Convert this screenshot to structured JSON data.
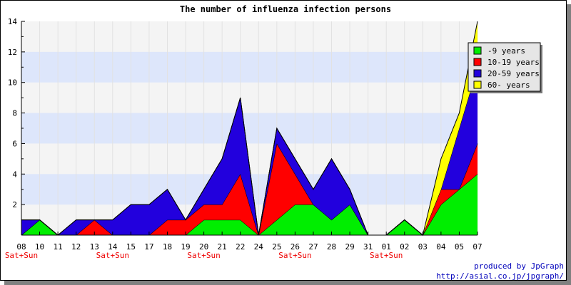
{
  "chart_data": {
    "type": "area",
    "stacked": true,
    "title": "The number of influenza infection persons",
    "categories": [
      "08",
      "10",
      "11",
      "12",
      "13",
      "14",
      "15",
      "17",
      "18",
      "19",
      "20",
      "21",
      "22",
      "24",
      "25",
      "26",
      "27",
      "28",
      "29",
      "31",
      "01",
      "02",
      "03",
      "04",
      "05",
      "07"
    ],
    "weekend_marker": "Sat+Sun",
    "weekend_marker_categories": [
      "08",
      "14",
      "20",
      "26",
      "01"
    ],
    "ylim": [
      0,
      14
    ],
    "yticks": [
      2,
      4,
      6,
      8,
      10,
      12,
      14
    ],
    "grid": "horizontal bands",
    "legend_position": "top-right",
    "series": [
      {
        "name": "-9 years",
        "color": "#00ee00",
        "values": [
          0,
          1,
          0,
          0,
          0,
          0,
          0,
          0,
          0,
          0,
          1,
          1,
          1,
          0,
          1,
          2,
          2,
          1,
          2,
          0,
          0,
          1,
          0,
          2,
          3,
          4
        ]
      },
      {
        "name": "10-19 years",
        "color": "#ff0000",
        "values": [
          0,
          0,
          0,
          0,
          1,
          0,
          0,
          0,
          1,
          1,
          1,
          1,
          3,
          0,
          5,
          2,
          0,
          0,
          0,
          0,
          0,
          0,
          0,
          1,
          0,
          2
        ]
      },
      {
        "name": "20-59 years",
        "color": "#2200dd",
        "values": [
          1,
          0,
          0,
          1,
          0,
          1,
          2,
          2,
          2,
          0,
          1,
          3,
          5,
          0,
          1,
          1,
          1,
          4,
          1,
          0,
          0,
          0,
          0,
          0,
          4,
          5
        ]
      },
      {
        "name": "60- years",
        "color": "#ffff00",
        "values": [
          0,
          0,
          0,
          0,
          0,
          0,
          0,
          0,
          0,
          0,
          0,
          0,
          0,
          0,
          0,
          0,
          0,
          0,
          0,
          0,
          0,
          0,
          0,
          2,
          1,
          3
        ]
      }
    ]
  },
  "credit": {
    "line1": "produced by JpGraph",
    "line2": "http://asial.co.jp/jpgraph/"
  }
}
